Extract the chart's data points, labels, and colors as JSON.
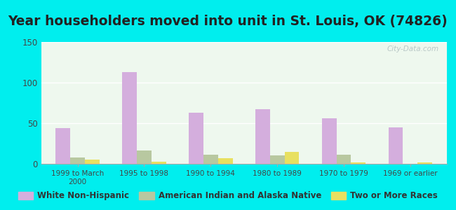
{
  "title": "Year householders moved into unit in St. Louis, OK (74826)",
  "categories": [
    "1999 to March\n2000",
    "1995 to 1998",
    "1990 to 1994",
    "1980 to 1989",
    "1970 to 1979",
    "1969 or earlier"
  ],
  "series": {
    "White Non-Hispanic": [
      44,
      113,
      63,
      67,
      56,
      45
    ],
    "American Indian and Alaska Native": [
      8,
      16,
      11,
      10,
      11,
      0
    ],
    "Two or More Races": [
      5,
      3,
      7,
      15,
      2,
      2
    ]
  },
  "colors": {
    "White Non-Hispanic": "#d4aedd",
    "American Indian and Alaska Native": "#b8c8a0",
    "Two or More Races": "#e8e060"
  },
  "ylim": [
    0,
    150
  ],
  "yticks": [
    0,
    50,
    100,
    150
  ],
  "background_color": "#00eeee",
  "plot_bg": "#eef8ee",
  "watermark": "City-Data.com",
  "bar_width": 0.22,
  "legend_fontsize": 8.5,
  "title_fontsize": 13.5
}
